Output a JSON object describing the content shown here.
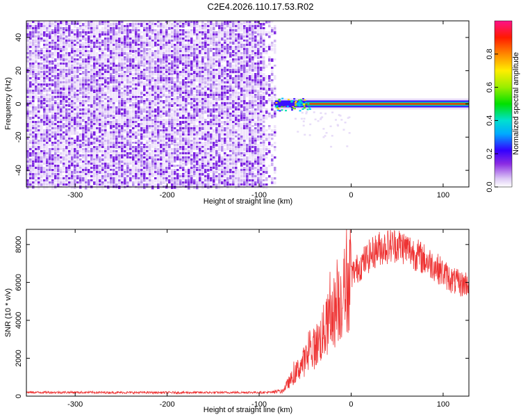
{
  "title": "C2E4.2026.110.17.53.R02",
  "chart_data": [
    {
      "type": "heatmap",
      "xlabel": "Height of straight line (km)",
      "ylabel": "Frequency (Hz)",
      "xlim": [
        -353,
        128
      ],
      "ylim": [
        -50,
        50
      ],
      "x_ticks": [
        -300,
        -200,
        -100,
        0,
        100
      ],
      "y_ticks": [
        -40,
        -20,
        0,
        20,
        40
      ],
      "colorbar": {
        "label": "Normalized spectral amplitude",
        "range": [
          0,
          1
        ],
        "ticks": [
          0.0,
          0.2,
          0.4,
          0.6,
          0.8
        ],
        "tick_labels": [
          "0.0",
          "0.2",
          "0.4",
          "0.6",
          "0.8"
        ]
      },
      "regions": [
        {
          "name": "broadband noise",
          "x_range": [
            -353,
            -83
          ],
          "y_range": [
            -50,
            50
          ],
          "amplitude_range": [
            0.0,
            0.15
          ]
        },
        {
          "name": "narrow line near 0 Hz",
          "x_range": [
            -83,
            128
          ],
          "center_hz": 0,
          "peak_amplitude": 0.95
        }
      ]
    },
    {
      "type": "line",
      "xlabel": "Height of straight line (km)",
      "ylabel": "SNR (10 * v/v)",
      "xlim": [
        -353,
        128
      ],
      "ylim": [
        0,
        8800
      ],
      "x_ticks": [
        -300,
        -200,
        -100,
        0,
        100
      ],
      "y_ticks": [
        0,
        2000,
        4000,
        6000,
        8000
      ],
      "color": "#ee3333",
      "series": [
        {
          "x": [
            -353,
            -300,
            -250,
            -200,
            -150,
            -100,
            -85,
            -75,
            -65,
            -55,
            -45,
            -35,
            -25,
            -15,
            -5,
            0,
            10,
            20,
            30,
            40,
            50,
            60,
            70,
            80,
            90,
            100,
            110,
            120,
            128
          ],
          "y": [
            200,
            200,
            190,
            190,
            190,
            200,
            200,
            250,
            900,
            1600,
            2200,
            2900,
            3800,
            4800,
            5700,
            6400,
            6900,
            7400,
            7800,
            7900,
            8000,
            7800,
            7500,
            7200,
            6900,
            6500,
            6100,
            5900,
            6000
          ]
        }
      ]
    }
  ]
}
